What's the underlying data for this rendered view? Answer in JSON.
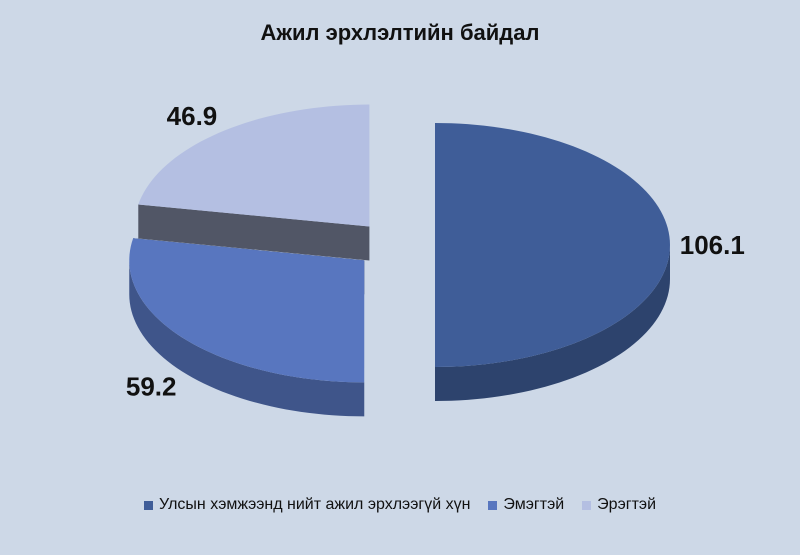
{
  "chart_data": {
    "type": "pie",
    "title": "Ажил эрхлэлтийн байдал",
    "categories": [
      "Улсын хэмжээнд нийт ажил эрхлээгүй хүн",
      "Эмэгтэй",
      "Эрэгтэй"
    ],
    "values": [
      106.1,
      59.2,
      46.9
    ],
    "colors": [
      "#3f5d98",
      "#5876bf",
      "#b4bfe2"
    ]
  }
}
